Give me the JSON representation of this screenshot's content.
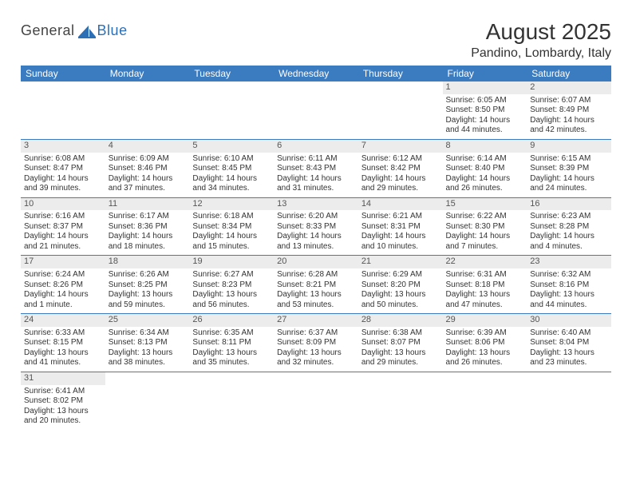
{
  "logo": {
    "part1": "General",
    "part2": "Blue"
  },
  "title": "August 2025",
  "location": "Pandino, Lombardy, Italy",
  "colors": {
    "header_bg": "#3b7bbf",
    "header_text": "#ffffff",
    "row_divider": "#3b7bbf",
    "daynum_bg": "#ececec",
    "logo_blue": "#2d6fb5"
  },
  "weekdays": [
    "Sunday",
    "Monday",
    "Tuesday",
    "Wednesday",
    "Thursday",
    "Friday",
    "Saturday"
  ],
  "weeks": [
    [
      null,
      null,
      null,
      null,
      null,
      {
        "n": "1",
        "sr": "Sunrise: 6:05 AM",
        "ss": "Sunset: 8:50 PM",
        "d1": "Daylight: 14 hours",
        "d2": "and 44 minutes."
      },
      {
        "n": "2",
        "sr": "Sunrise: 6:07 AM",
        "ss": "Sunset: 8:49 PM",
        "d1": "Daylight: 14 hours",
        "d2": "and 42 minutes."
      }
    ],
    [
      {
        "n": "3",
        "sr": "Sunrise: 6:08 AM",
        "ss": "Sunset: 8:47 PM",
        "d1": "Daylight: 14 hours",
        "d2": "and 39 minutes."
      },
      {
        "n": "4",
        "sr": "Sunrise: 6:09 AM",
        "ss": "Sunset: 8:46 PM",
        "d1": "Daylight: 14 hours",
        "d2": "and 37 minutes."
      },
      {
        "n": "5",
        "sr": "Sunrise: 6:10 AM",
        "ss": "Sunset: 8:45 PM",
        "d1": "Daylight: 14 hours",
        "d2": "and 34 minutes."
      },
      {
        "n": "6",
        "sr": "Sunrise: 6:11 AM",
        "ss": "Sunset: 8:43 PM",
        "d1": "Daylight: 14 hours",
        "d2": "and 31 minutes."
      },
      {
        "n": "7",
        "sr": "Sunrise: 6:12 AM",
        "ss": "Sunset: 8:42 PM",
        "d1": "Daylight: 14 hours",
        "d2": "and 29 minutes."
      },
      {
        "n": "8",
        "sr": "Sunrise: 6:14 AM",
        "ss": "Sunset: 8:40 PM",
        "d1": "Daylight: 14 hours",
        "d2": "and 26 minutes."
      },
      {
        "n": "9",
        "sr": "Sunrise: 6:15 AM",
        "ss": "Sunset: 8:39 PM",
        "d1": "Daylight: 14 hours",
        "d2": "and 24 minutes."
      }
    ],
    [
      {
        "n": "10",
        "sr": "Sunrise: 6:16 AM",
        "ss": "Sunset: 8:37 PM",
        "d1": "Daylight: 14 hours",
        "d2": "and 21 minutes."
      },
      {
        "n": "11",
        "sr": "Sunrise: 6:17 AM",
        "ss": "Sunset: 8:36 PM",
        "d1": "Daylight: 14 hours",
        "d2": "and 18 minutes."
      },
      {
        "n": "12",
        "sr": "Sunrise: 6:18 AM",
        "ss": "Sunset: 8:34 PM",
        "d1": "Daylight: 14 hours",
        "d2": "and 15 minutes."
      },
      {
        "n": "13",
        "sr": "Sunrise: 6:20 AM",
        "ss": "Sunset: 8:33 PM",
        "d1": "Daylight: 14 hours",
        "d2": "and 13 minutes."
      },
      {
        "n": "14",
        "sr": "Sunrise: 6:21 AM",
        "ss": "Sunset: 8:31 PM",
        "d1": "Daylight: 14 hours",
        "d2": "and 10 minutes."
      },
      {
        "n": "15",
        "sr": "Sunrise: 6:22 AM",
        "ss": "Sunset: 8:30 PM",
        "d1": "Daylight: 14 hours",
        "d2": "and 7 minutes."
      },
      {
        "n": "16",
        "sr": "Sunrise: 6:23 AM",
        "ss": "Sunset: 8:28 PM",
        "d1": "Daylight: 14 hours",
        "d2": "and 4 minutes."
      }
    ],
    [
      {
        "n": "17",
        "sr": "Sunrise: 6:24 AM",
        "ss": "Sunset: 8:26 PM",
        "d1": "Daylight: 14 hours",
        "d2": "and 1 minute."
      },
      {
        "n": "18",
        "sr": "Sunrise: 6:26 AM",
        "ss": "Sunset: 8:25 PM",
        "d1": "Daylight: 13 hours",
        "d2": "and 59 minutes."
      },
      {
        "n": "19",
        "sr": "Sunrise: 6:27 AM",
        "ss": "Sunset: 8:23 PM",
        "d1": "Daylight: 13 hours",
        "d2": "and 56 minutes."
      },
      {
        "n": "20",
        "sr": "Sunrise: 6:28 AM",
        "ss": "Sunset: 8:21 PM",
        "d1": "Daylight: 13 hours",
        "d2": "and 53 minutes."
      },
      {
        "n": "21",
        "sr": "Sunrise: 6:29 AM",
        "ss": "Sunset: 8:20 PM",
        "d1": "Daylight: 13 hours",
        "d2": "and 50 minutes."
      },
      {
        "n": "22",
        "sr": "Sunrise: 6:31 AM",
        "ss": "Sunset: 8:18 PM",
        "d1": "Daylight: 13 hours",
        "d2": "and 47 minutes."
      },
      {
        "n": "23",
        "sr": "Sunrise: 6:32 AM",
        "ss": "Sunset: 8:16 PM",
        "d1": "Daylight: 13 hours",
        "d2": "and 44 minutes."
      }
    ],
    [
      {
        "n": "24",
        "sr": "Sunrise: 6:33 AM",
        "ss": "Sunset: 8:15 PM",
        "d1": "Daylight: 13 hours",
        "d2": "and 41 minutes."
      },
      {
        "n": "25",
        "sr": "Sunrise: 6:34 AM",
        "ss": "Sunset: 8:13 PM",
        "d1": "Daylight: 13 hours",
        "d2": "and 38 minutes."
      },
      {
        "n": "26",
        "sr": "Sunrise: 6:35 AM",
        "ss": "Sunset: 8:11 PM",
        "d1": "Daylight: 13 hours",
        "d2": "and 35 minutes."
      },
      {
        "n": "27",
        "sr": "Sunrise: 6:37 AM",
        "ss": "Sunset: 8:09 PM",
        "d1": "Daylight: 13 hours",
        "d2": "and 32 minutes."
      },
      {
        "n": "28",
        "sr": "Sunrise: 6:38 AM",
        "ss": "Sunset: 8:07 PM",
        "d1": "Daylight: 13 hours",
        "d2": "and 29 minutes."
      },
      {
        "n": "29",
        "sr": "Sunrise: 6:39 AM",
        "ss": "Sunset: 8:06 PM",
        "d1": "Daylight: 13 hours",
        "d2": "and 26 minutes."
      },
      {
        "n": "30",
        "sr": "Sunrise: 6:40 AM",
        "ss": "Sunset: 8:04 PM",
        "d1": "Daylight: 13 hours",
        "d2": "and 23 minutes."
      }
    ],
    [
      {
        "n": "31",
        "sr": "Sunrise: 6:41 AM",
        "ss": "Sunset: 8:02 PM",
        "d1": "Daylight: 13 hours",
        "d2": "and 20 minutes."
      },
      null,
      null,
      null,
      null,
      null,
      null
    ]
  ]
}
